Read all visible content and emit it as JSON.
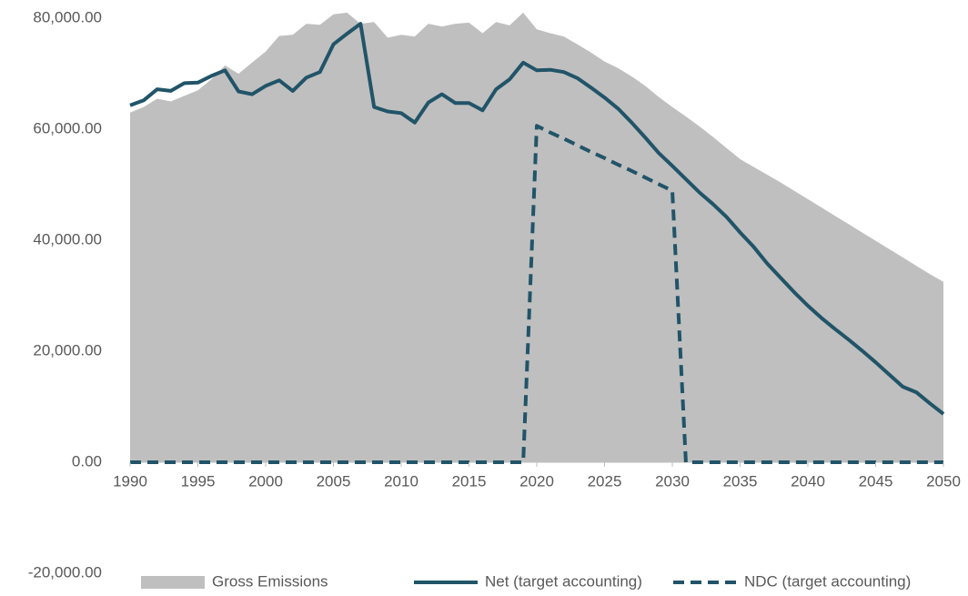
{
  "chart_data": {
    "type": "area_line",
    "x": [
      1990,
      1991,
      1992,
      1993,
      1994,
      1995,
      1996,
      1997,
      1998,
      1999,
      2000,
      2001,
      2002,
      2003,
      2004,
      2005,
      2006,
      2007,
      2008,
      2009,
      2010,
      2011,
      2012,
      2013,
      2014,
      2015,
      2016,
      2017,
      2018,
      2019,
      2020,
      2021,
      2022,
      2023,
      2024,
      2025,
      2026,
      2027,
      2028,
      2029,
      2030,
      2031,
      2032,
      2033,
      2034,
      2035,
      2036,
      2037,
      2038,
      2039,
      2040,
      2041,
      2042,
      2043,
      2044,
      2045,
      2046,
      2047,
      2048,
      2049,
      2050
    ],
    "series": [
      {
        "name": "Gross Emissions",
        "color": "#bfbfbf",
        "kind": "area",
        "values": [
          63000,
          64000,
          65500,
          65000,
          66000,
          67000,
          69000,
          71500,
          70000,
          72000,
          74000,
          76800,
          77000,
          79000,
          78800,
          80700,
          81000,
          79000,
          79300,
          76500,
          77000,
          76700,
          79000,
          78500,
          79000,
          79200,
          77300,
          79300,
          78700,
          81000,
          78000,
          77300,
          76700,
          75300,
          73800,
          72200,
          71000,
          69500,
          67800,
          65800,
          64000,
          62300,
          60500,
          58600,
          56600,
          54600,
          53200,
          51800,
          50400,
          48900,
          47400,
          45900,
          44400,
          42900,
          41400,
          39900,
          38400,
          36900,
          35400,
          33900,
          32500
        ]
      },
      {
        "name": "Net (target accounting)",
        "color": "#215468",
        "kind": "line",
        "values": [
          64300,
          65200,
          67200,
          66900,
          68300,
          68400,
          69600,
          70600,
          66800,
          66300,
          67800,
          68800,
          66900,
          69300,
          70300,
          75300,
          77200,
          79000,
          64000,
          63200,
          62900,
          61200,
          64800,
          66300,
          64700,
          64700,
          63400,
          67200,
          69000,
          72000,
          70600,
          70700,
          70300,
          69200,
          67500,
          65700,
          63700,
          61200,
          58500,
          55700,
          53400,
          51000,
          48600,
          46500,
          44200,
          41400,
          38800,
          35800,
          33200,
          30600,
          28200,
          26000,
          24000,
          22100,
          20100,
          18000,
          15800,
          13600,
          12600,
          10600,
          8700
        ]
      },
      {
        "name": "NDC (target accounting)",
        "color": "#215468",
        "kind": "dashed",
        "values": [
          0,
          0,
          0,
          0,
          0,
          0,
          0,
          0,
          0,
          0,
          0,
          0,
          0,
          0,
          0,
          0,
          0,
          0,
          0,
          0,
          0,
          0,
          0,
          0,
          0,
          0,
          0,
          0,
          0,
          0,
          60600,
          59400,
          58300,
          57100,
          55900,
          54800,
          53600,
          52500,
          51300,
          50100,
          48900,
          0,
          0,
          0,
          0,
          0,
          0,
          0,
          0,
          0,
          0,
          0,
          0,
          0,
          0,
          0,
          0,
          0,
          0,
          0,
          0
        ]
      }
    ],
    "xlim": [
      1990,
      2050
    ],
    "xticks": [
      1990,
      1995,
      2000,
      2005,
      2010,
      2015,
      2020,
      2025,
      2030,
      2035,
      2040,
      2045,
      2050
    ],
    "ylim": [
      -20000,
      80000
    ],
    "yticks": [
      {
        "value": -20000,
        "label": "-20,000.00"
      },
      {
        "value": 0,
        "label": "0.00"
      },
      {
        "value": 20000,
        "label": "20,000.00"
      },
      {
        "value": 40000,
        "label": "40,000.00"
      },
      {
        "value": 60000,
        "label": "60,000.00"
      },
      {
        "value": 80000,
        "label": "80,000.00"
      }
    ],
    "legend": "bottom"
  }
}
